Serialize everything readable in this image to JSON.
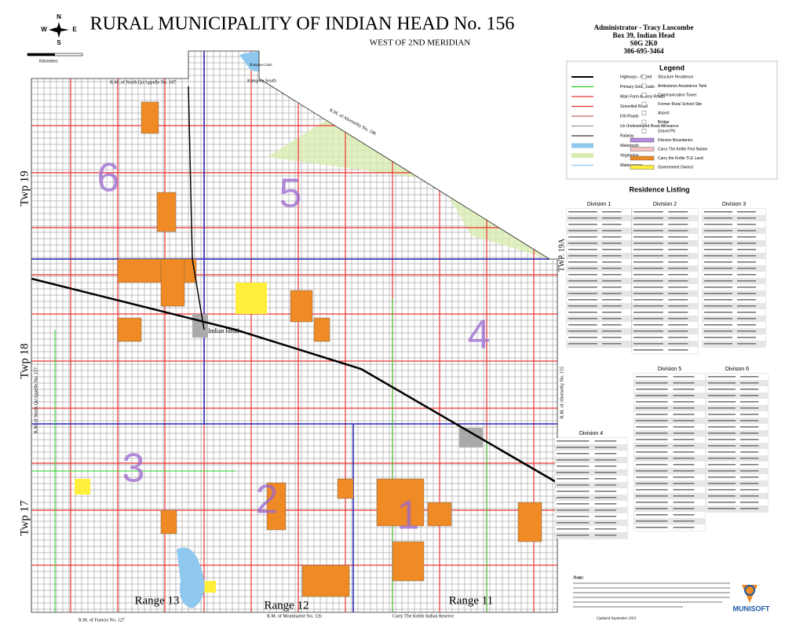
{
  "header": {
    "title": "RURAL MUNICIPALITY OF INDIAN HEAD  No. 156",
    "subtitle": "WEST OF 2ND MERIDIAN"
  },
  "admin": [
    "Administrator - Tracy Luscombe",
    "Box 39, Indian Head",
    "S0G 2K0",
    "306-695-3464"
  ],
  "compass": {
    "n": "N",
    "s": "S",
    "e": "E",
    "w": "W",
    "scale": "Kilometers"
  },
  "legend": {
    "title": "Legend",
    "left": [
      "Highways - Paved",
      "Primary Grid Roads",
      "Main Farm Access Roads",
      "Gravelled Road",
      "Dirt Roads",
      "Un Undeveloped Road Allowance",
      "Railway",
      "Waterbody",
      "Vegetation",
      "Watercourse"
    ],
    "right": [
      "Structure Residence",
      "Ambulance Assistance Tank",
      "Communication Tower",
      "Former Rural School Site",
      "Airport",
      "Bridge",
      "Gravel Pit",
      "Division Boundaries",
      "Carry The Kettle First Nation",
      "Carry the Kettle TLE Land",
      "Government Owned"
    ]
  },
  "map": {
    "towns": [
      "Indian Head",
      "Katepwa South",
      "Katepwa Lake"
    ],
    "rms": [
      "R.M. of North Qu'Appelle No. 187",
      "R.M. of Abernethy No. 186",
      "R.M. of North Qu'Appelle No. 157",
      "R.M. of Abernethy No. 155",
      "R.M. of Francis No. 127",
      "R.M. of Montmartre No. 126",
      "Carry The Kettle Indian Reserve"
    ],
    "townships": [
      "Twp 19",
      "Twp 18",
      "Twp 17",
      "TWP. 19A"
    ],
    "ranges": [
      "Range 13",
      "Range 12",
      "Range 11"
    ],
    "divisions": [
      "6",
      "5",
      "4",
      "3",
      "2",
      "1"
    ]
  },
  "residence": {
    "title": "Residence Listing",
    "divisions": [
      "Division 1",
      "Division 2",
      "Division 3",
      "Division 4",
      "Division 5",
      "Division 6"
    ]
  },
  "note": {
    "title": "Note:",
    "updated": "Updated September 2021"
  },
  "logo": "MUNISOFT"
}
